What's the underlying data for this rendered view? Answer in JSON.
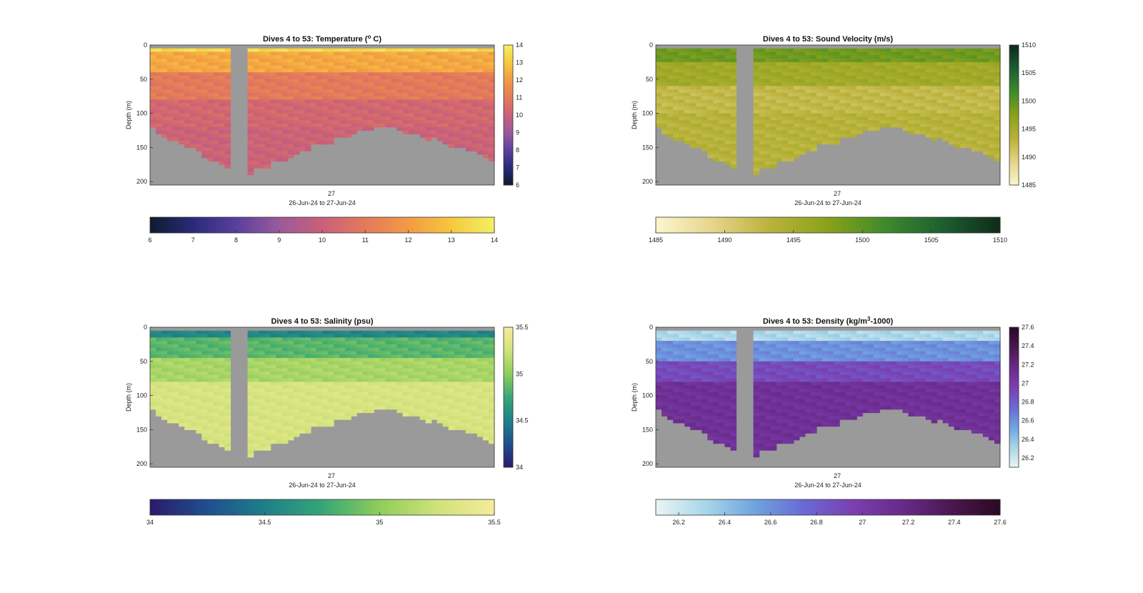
{
  "chart_data": [
    {
      "type": "heatmap",
      "title": "Dives 4 to 53: Temperature (",
      "title_sup": "o",
      "title_after": " C)",
      "ylabel": "Depth (m)",
      "xtick": "27",
      "xlabel": "26-Jun-24 to 27-Jun-24",
      "ylim": [
        0,
        205
      ],
      "yticks": [
        0,
        50,
        100,
        150,
        200
      ],
      "clim": [
        6,
        14
      ],
      "cbar_ticks": [
        6,
        7,
        8,
        9,
        10,
        11,
        12,
        13,
        14
      ],
      "hbar_ticks": [
        6,
        7,
        8,
        9,
        10,
        11,
        12,
        13,
        14
      ],
      "colors": [
        "#0d1b2e",
        "#2a2a7a",
        "#5a3f9e",
        "#9a5a9a",
        "#c9607a",
        "#e47a5a",
        "#f29a45",
        "#f6c83e",
        "#f2f065"
      ],
      "bands": [
        {
          "depth": [
            0,
            10
          ],
          "value": 13.4
        },
        {
          "depth": [
            10,
            40
          ],
          "value": 12.3
        },
        {
          "depth": [
            40,
            80
          ],
          "value": 11.0
        },
        {
          "depth": [
            80,
            120
          ],
          "value": 10.3
        },
        {
          "depth": [
            120,
            205
          ],
          "value": 10.1
        }
      ],
      "gap_column": true
    },
    {
      "type": "heatmap",
      "title": "Dives 4 to 53: Sound Velocity (m/s)",
      "ylabel": "Depth (m)",
      "xtick": "27",
      "xlabel": "26-Jun-24 to 27-Jun-24",
      "ylim": [
        0,
        205
      ],
      "yticks": [
        0,
        50,
        100,
        150,
        200
      ],
      "clim": [
        1485,
        1510
      ],
      "cbar_ticks": [
        1485,
        1490,
        1495,
        1500,
        1505,
        1510
      ],
      "hbar_ticks": [
        1485,
        1490,
        1495,
        1500,
        1505,
        1510
      ],
      "colors": [
        "#fbf6cf",
        "#e6d48a",
        "#b9b23a",
        "#8aa21a",
        "#3f8a2a",
        "#1d5f32",
        "#102a1a"
      ],
      "bands": [
        {
          "depth": [
            0,
            25
          ],
          "value": 1499.0
        },
        {
          "depth": [
            25,
            60
          ],
          "value": 1495.5
        },
        {
          "depth": [
            60,
            100
          ],
          "value": 1492.5
        },
        {
          "depth": [
            100,
            205
          ],
          "value": 1493.5
        }
      ],
      "gap_column": true
    },
    {
      "type": "heatmap",
      "title": "Dives 4 to 53: Salinity (psu)",
      "ylabel": "Depth (m)",
      "xtick": "27",
      "xlabel": "26-Jun-24 to 27-Jun-24",
      "ylim": [
        0,
        205
      ],
      "yticks": [
        0,
        50,
        100,
        150,
        200
      ],
      "clim": [
        34,
        35.5
      ],
      "cbar_ticks": [
        34,
        34.5,
        35,
        35.5
      ],
      "hbar_ticks": [
        34,
        34.5,
        35,
        35.5
      ],
      "colors": [
        "#2c1a6b",
        "#1f4f8f",
        "#1f7f8a",
        "#35a678",
        "#8fcd5a",
        "#cfe27a",
        "#f6ec9a"
      ],
      "bands": [
        {
          "depth": [
            0,
            15
          ],
          "value": 34.55
        },
        {
          "depth": [
            15,
            45
          ],
          "value": 34.85
        },
        {
          "depth": [
            45,
            80
          ],
          "value": 35.1
        },
        {
          "depth": [
            80,
            205
          ],
          "value": 35.3
        }
      ],
      "gap_column": true
    },
    {
      "type": "heatmap",
      "title": "Dives 4 to 53: Density (kg/m",
      "title_sup": "3",
      "title_after": "-1000)",
      "ylabel": "Depth (m)",
      "xtick": "27",
      "xlabel": "26-Jun-24 to 27-Jun-24",
      "ylim": [
        0,
        205
      ],
      "yticks": [
        0,
        50,
        100,
        150,
        200
      ],
      "clim": [
        26.1,
        27.6
      ],
      "cbar_ticks": [
        26.2,
        26.4,
        26.6,
        26.8,
        27,
        27.2,
        27.4,
        27.6
      ],
      "hbar_ticks": [
        26.2,
        26.4,
        26.6,
        26.8,
        27,
        27.2,
        27.4,
        27.6
      ],
      "colors": [
        "#eaf5f5",
        "#a9d6e8",
        "#6fa5df",
        "#6a6ad6",
        "#7b3fb0",
        "#6a2a8a",
        "#4a1850",
        "#2a0a22"
      ],
      "bands": [
        {
          "depth": [
            0,
            20
          ],
          "value": 26.3
        },
        {
          "depth": [
            20,
            50
          ],
          "value": 26.6
        },
        {
          "depth": [
            50,
            80
          ],
          "value": 26.9
        },
        {
          "depth": [
            80,
            205
          ],
          "value": 27.1
        }
      ],
      "gap_column": true
    }
  ]
}
